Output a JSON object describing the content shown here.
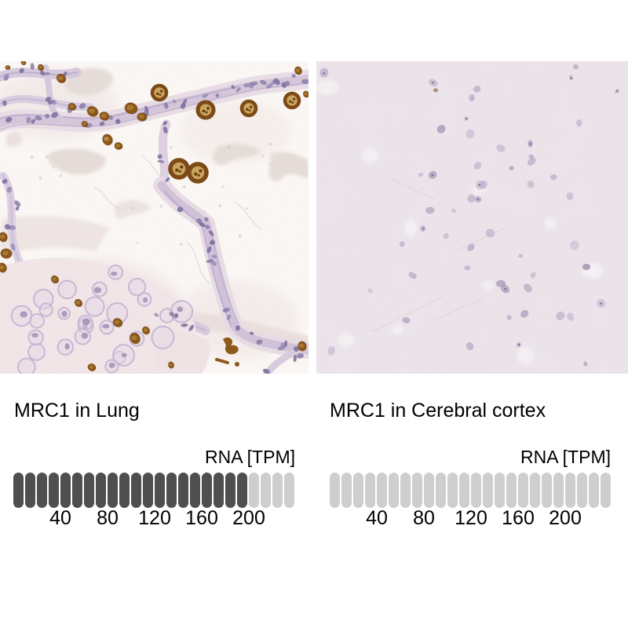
{
  "chart_data": [
    {
      "type": "bar",
      "panel": "left",
      "title": "MRC1 in Lung",
      "ylabel": "RNA [TPM]",
      "segments_total": 24,
      "segments_filled": 20,
      "tpm_per_segment": 10,
      "ticks": [
        40,
        80,
        120,
        160,
        200
      ],
      "axis_range": [
        0,
        240
      ],
      "value_tpm_estimate": 200
    },
    {
      "type": "bar",
      "panel": "right",
      "title": "MRC1 in Cerebral cortex",
      "ylabel": "RNA [TPM]",
      "segments_total": 24,
      "segments_filled": 0,
      "tpm_per_segment": 10,
      "ticks": [
        40,
        80,
        120,
        160,
        200
      ],
      "axis_range": [
        0,
        240
      ],
      "value_tpm_estimate": 0
    }
  ],
  "colors": {
    "bar_filled": "#4f4f4f",
    "bar_empty": "#cecece",
    "text": "#000000",
    "page_bg": "#ffffff"
  }
}
